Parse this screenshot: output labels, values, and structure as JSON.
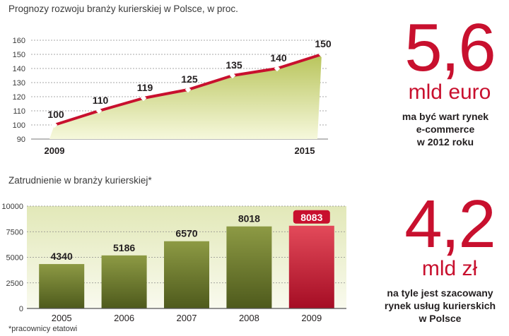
{
  "chart_data": [
    {
      "type": "area",
      "title": "Prognozy rozwoju branży kurierskiej w Polsce, w proc.",
      "x": [
        2009,
        2010,
        2011,
        2012,
        2013,
        2014,
        2015
      ],
      "values": [
        100,
        110,
        119,
        125,
        135,
        140,
        150
      ],
      "data_labels": [
        "100",
        "110",
        "119",
        "125",
        "135",
        "140",
        "150"
      ],
      "x_tick_labels": [
        "2009",
        "2015"
      ],
      "y_ticks": [
        "90",
        "100",
        "110",
        "120",
        "130",
        "140",
        "150",
        "160"
      ],
      "ylim": [
        90,
        160
      ],
      "grid": true,
      "colors": {
        "line": "#c8102e",
        "area_top": "#b8c45a",
        "area_bottom": "#f6f8dc"
      }
    },
    {
      "type": "bar",
      "title": "Zatrudnienie w branży kurierskiej*",
      "categories": [
        "2005",
        "2006",
        "2007",
        "2008",
        "2009"
      ],
      "values": [
        4340,
        5186,
        6570,
        8018,
        8083
      ],
      "data_labels": [
        "4340",
        "5186",
        "6570",
        "8018",
        "8083"
      ],
      "y_ticks": [
        "0",
        "2500",
        "5000",
        "7500",
        "10000"
      ],
      "ylim": [
        0,
        10000
      ],
      "grid": true,
      "highlight_index": 4,
      "colors": {
        "bar": "#4e5a1c",
        "bar_light": "#8d9a44",
        "highlight": "#c8102e",
        "background_top": "#e2e8b8",
        "background_bottom": "#f9faee"
      }
    }
  ],
  "footnote": "*pracownicy etatowi",
  "facts": [
    {
      "number": "5,6",
      "unit": "mld euro",
      "lines": [
        "ma być wart rynek",
        "e-commerce",
        "w 2012 roku"
      ]
    },
    {
      "number": "4,2",
      "unit": "mld zł",
      "lines": [
        "na tyle jest szacowany",
        "rynek usług kurierskich",
        "w Polsce"
      ]
    }
  ]
}
